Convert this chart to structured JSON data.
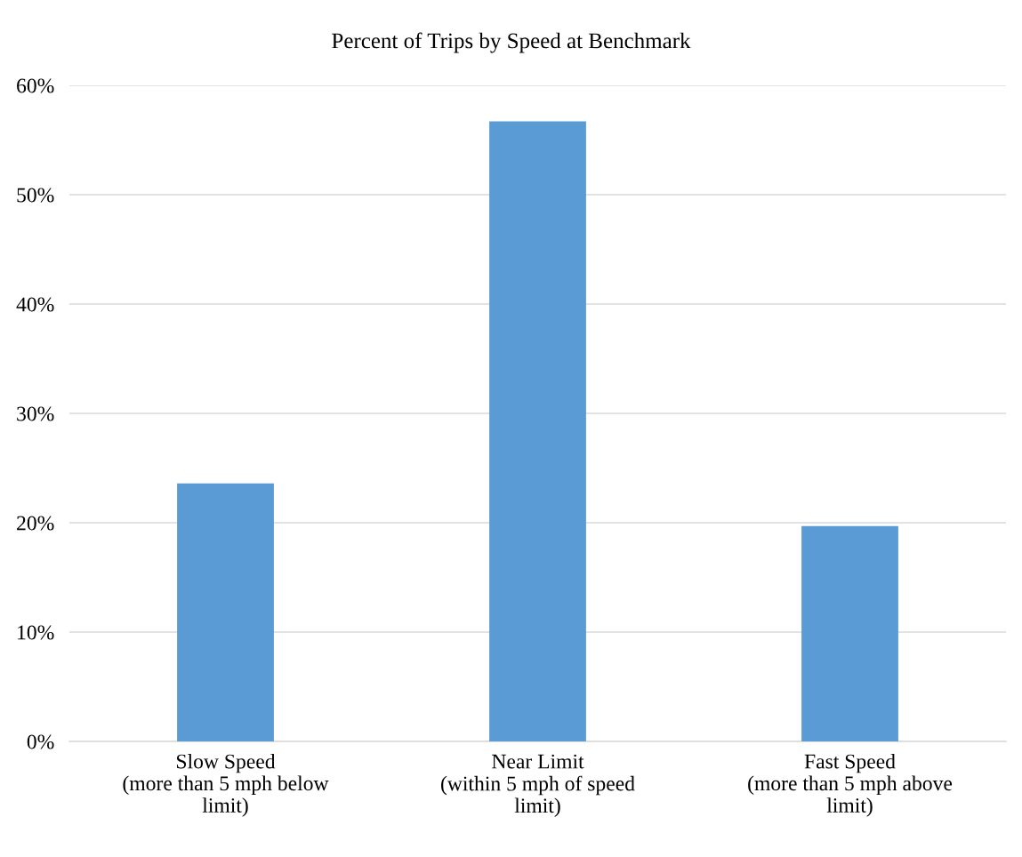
{
  "chart_data": {
    "type": "bar",
    "title": "Percent of Trips by Speed at Benchmark",
    "categories": [
      "Slow Speed\n(more than 5 mph below\nlimit)",
      "Near Limit\n(within 5 mph of speed\nlimit)",
      "Fast Speed\n(more than 5 mph above\nlimit)"
    ],
    "values": [
      23.6,
      56.7,
      19.7
    ],
    "color": "#5b9bd5",
    "ylim": [
      0,
      60
    ],
    "yticks": [
      {
        "value": 0,
        "label": "0%"
      },
      {
        "value": 10,
        "label": "10%"
      },
      {
        "value": 20,
        "label": "20%"
      },
      {
        "value": 30,
        "label": "30%"
      },
      {
        "value": 40,
        "label": "40%"
      },
      {
        "value": 50,
        "label": "50%"
      },
      {
        "value": 60,
        "label": "60%"
      }
    ],
    "grid": "y"
  }
}
